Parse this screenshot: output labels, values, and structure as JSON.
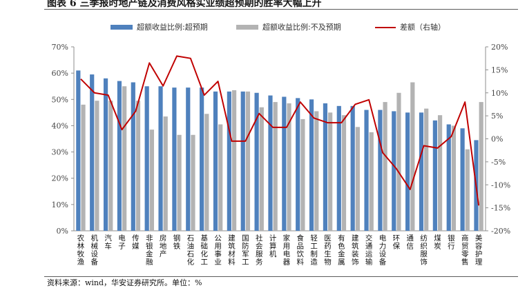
{
  "title": "图表 6 三季报时地产链及消费风格实业绩超预期的胜率大幅上升",
  "source": "资料来源：wind，华安证券研究所。单位：%",
  "colors": {
    "beat": "#4f81bd",
    "miss": "#b3b3b3",
    "diff": "#c00000"
  },
  "chart_data": {
    "type": "bar",
    "categories": [
      "农林牧渔",
      "机械设备",
      "汽车",
      "电子",
      "传媒",
      "非银金融",
      "房地产",
      "钢铁",
      "石油石化",
      "基础化工",
      "公用事业",
      "建筑材料",
      "国防军工",
      "社会服务",
      "计算机",
      "家用电器",
      "食品饮料",
      "轻工制造",
      "医药生物",
      "有色金属",
      "建筑装饰",
      "交通运输",
      "电力设备",
      "环保",
      "通信",
      "纺织服饰",
      "煤炭",
      "银行",
      "商贸零售",
      "美容护理"
    ],
    "series": [
      {
        "name": "超额收益比例:超预期",
        "axis": "left",
        "values": [
          61,
          59.5,
          58,
          57,
          56.5,
          55,
          55,
          54.5,
          54.5,
          54.5,
          53,
          53,
          53,
          52.5,
          51.5,
          51,
          50.5,
          50,
          48.5,
          47.5,
          47.5,
          46,
          46,
          45.5,
          45,
          45,
          42,
          40.5,
          39,
          34.5
        ]
      },
      {
        "name": "超额收益比例:不及预期",
        "axis": "left",
        "values": [
          48,
          49.5,
          49.5,
          55,
          49.5,
          38.5,
          43.5,
          36.5,
          36.5,
          44.5,
          40.5,
          53.5,
          53,
          47,
          49,
          48.5,
          42.5,
          45.5,
          45,
          44,
          39.5,
          37.5,
          49,
          52.5,
          56.5,
          46.5,
          44,
          40,
          31,
          49
        ]
      },
      {
        "name": "差额（右轴）",
        "axis": "right",
        "type": "line",
        "values": [
          13,
          10,
          9.5,
          2,
          6,
          16.5,
          11.5,
          18,
          17.5,
          9.5,
          12.5,
          -0.5,
          -0.5,
          5.5,
          2.5,
          2.5,
          8,
          4.5,
          3.5,
          3.5,
          7.5,
          8.5,
          -3,
          -6.5,
          -11,
          -1.5,
          -2,
          0.5,
          8,
          -14.5
        ]
      }
    ],
    "y_left": {
      "min": 0,
      "max": 70,
      "step": 10,
      "tick_labels": [
        "0%",
        "10%",
        "20%",
        "30%",
        "40%",
        "50%",
        "60%",
        "70%"
      ]
    },
    "y_right": {
      "min": -20,
      "max": 20,
      "step": 5,
      "tick_labels": [
        "-20%",
        "-15%",
        "-10%",
        "-5%",
        "0%",
        "5%",
        "10%",
        "15%",
        "20%"
      ]
    },
    "legend_position": "top",
    "grid": false
  }
}
